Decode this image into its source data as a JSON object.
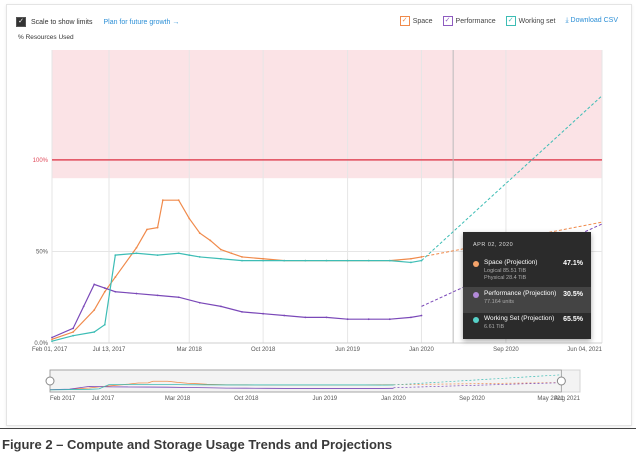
{
  "controls": {
    "scale_label": "Scale to show limits",
    "plan_link": "Plan for future growth →",
    "download": "Download CSV"
  },
  "legend": [
    {
      "label": "Space",
      "color": "#f08a4b"
    },
    {
      "label": "Performance",
      "color": "#8e5cc0"
    },
    {
      "label": "Working set",
      "color": "#3dbdb5"
    }
  ],
  "tooltip": {
    "date": "APR 02, 2020",
    "rows": [
      {
        "name": "Space (Projection)",
        "sub1": "Logical 85.51 TiB",
        "sub2": "Physical 28.4 TiB",
        "pct": "47.1%",
        "color": "#f4a36a"
      },
      {
        "name": "Performance (Projection)",
        "sub1": "77.164 units",
        "sub2": "",
        "pct": "30.5%",
        "color": "#b28ad8"
      },
      {
        "name": "Working Set (Projection)",
        "sub1": "6.61 TiB",
        "sub2": "",
        "pct": "65.5%",
        "color": "#56d1c8"
      }
    ]
  },
  "caption": "Figure 2 – Compute and Storage Usage Trends and Projections",
  "chart_data": {
    "type": "line",
    "title": "",
    "ylabel": "% Resources Used",
    "ylim": [
      0,
      160
    ],
    "x_ticks": [
      "Feb 01, 2017",
      "Jul 13, 2017",
      "Mar 2018",
      "Oct 2018",
      "Jun 2019",
      "Jan 2020",
      "Sep 2020",
      "Jun 04, 2021"
    ],
    "x_tick_months": [
      0,
      5.4,
      13,
      20,
      28,
      35,
      43,
      52.1
    ],
    "y_ticks": [
      {
        "value": 0,
        "label": "0.0%"
      },
      {
        "value": 50,
        "label": "50%"
      },
      {
        "value": 100,
        "label": "100%"
      }
    ],
    "limit_line": 100,
    "limit_band": [
      90,
      160
    ],
    "projection_marker_month": 38,
    "series": [
      {
        "name": "Space",
        "color": "#f08a4b",
        "x": [
          0,
          2,
          4,
          5,
          6,
          8,
          9,
          10,
          10.5,
          12,
          13,
          14,
          15,
          16,
          17,
          18,
          20,
          22,
          24,
          26,
          28,
          30,
          32,
          34,
          35
        ],
        "y": [
          2,
          6,
          18,
          28,
          36,
          52,
          62,
          63,
          78,
          78,
          68,
          60,
          56,
          51,
          49,
          47,
          46,
          45,
          45,
          45,
          45,
          45,
          45,
          46,
          47
        ],
        "projection": {
          "x": [
            35,
            52.1
          ],
          "y": [
            47,
            66
          ]
        }
      },
      {
        "name": "Performance",
        "color": "#7a48b8",
        "x": [
          0,
          2,
          3,
          4,
          5,
          6,
          8,
          10,
          12,
          14,
          16,
          18,
          20,
          22,
          24,
          26,
          28,
          30,
          32,
          34,
          35
        ],
        "y": [
          3,
          8,
          20,
          32,
          30,
          28,
          27,
          26,
          25,
          22,
          20,
          17,
          16,
          15,
          14,
          14,
          13,
          13,
          13,
          14,
          15
        ],
        "projection": {
          "x": [
            35,
            52.1
          ],
          "y": [
            20,
            65
          ]
        }
      },
      {
        "name": "Working set",
        "color": "#3dbdb5",
        "x": [
          0,
          2,
          4,
          5,
          6,
          8,
          10,
          12,
          13,
          14,
          16,
          18,
          20,
          22,
          24,
          26,
          28,
          30,
          32,
          34,
          35
        ],
        "y": [
          1,
          4,
          6,
          10,
          48,
          49,
          48,
          49,
          48,
          47,
          46,
          45,
          45,
          45,
          45,
          45,
          45,
          45,
          45,
          44,
          45
        ],
        "projection": {
          "x": [
            35,
            52.1
          ],
          "y": [
            45,
            135
          ]
        }
      }
    ],
    "grid": true,
    "legend_position": "top-right"
  },
  "navigator": {
    "ticks": [
      "Feb 2017",
      "Jul 2017",
      "Mar 2018",
      "Oct 2018",
      "Jun 2019",
      "Jan 2020",
      "Sep 2020",
      "May 2021",
      "Aug 2021"
    ],
    "tick_months": [
      0,
      5.4,
      13,
      20,
      28,
      35,
      43,
      51,
      54
    ]
  }
}
